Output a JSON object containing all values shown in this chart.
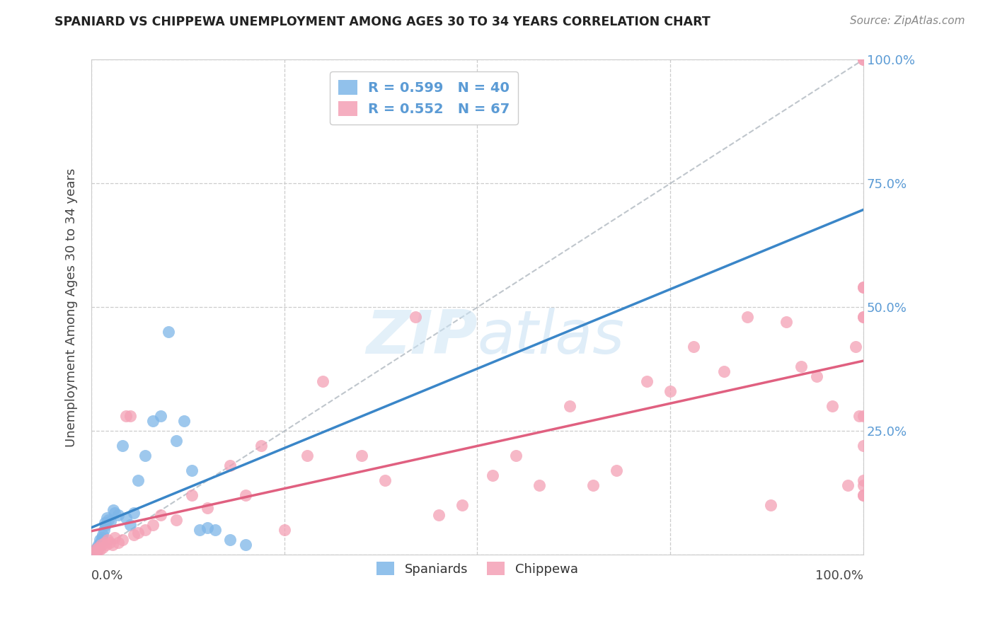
{
  "title": "SPANIARD VS CHIPPEWA UNEMPLOYMENT AMONG AGES 30 TO 34 YEARS CORRELATION CHART",
  "source": "Source: ZipAtlas.com",
  "ylabel": "Unemployment Among Ages 30 to 34 years",
  "spaniards_color": "#7eb6e8",
  "chippewa_color": "#f4a0b5",
  "trendline_spaniard_color": "#3a86c8",
  "trendline_chippewa_color": "#e06080",
  "diagonal_color": "#b0b8c0",
  "background_color": "#ffffff",
  "grid_color": "#cccccc",
  "watermark_zip": "ZIP",
  "watermark_atlas": "atlas",
  "legend1_label1": "R = 0.599   N = 40",
  "legend1_label2": "R = 0.552   N = 67",
  "legend2_label1": "Spaniards",
  "legend2_label2": "Chippewa",
  "right_tick_color": "#5b9bd5",
  "spaniards_x": [
    0.2,
    0.3,
    0.4,
    0.5,
    0.6,
    0.7,
    0.8,
    0.9,
    1.0,
    1.1,
    1.2,
    1.3,
    1.4,
    1.5,
    1.6,
    1.7,
    1.8,
    2.0,
    2.2,
    2.5,
    2.8,
    3.0,
    3.5,
    4.0,
    4.5,
    5.0,
    5.5,
    6.0,
    7.0,
    8.0,
    9.0,
    10.0,
    11.0,
    12.0,
    13.0,
    14.0,
    15.0,
    16.0,
    18.0,
    20.0
  ],
  "spaniards_y": [
    0.5,
    0.3,
    0.8,
    1.0,
    0.5,
    1.5,
    1.2,
    2.0,
    1.8,
    3.0,
    2.5,
    2.8,
    3.5,
    4.0,
    5.0,
    6.5,
    6.0,
    7.5,
    7.0,
    6.8,
    9.0,
    8.5,
    8.0,
    22.0,
    7.5,
    6.0,
    8.5,
    15.0,
    20.0,
    27.0,
    28.0,
    45.0,
    23.0,
    27.0,
    17.0,
    5.0,
    5.5,
    5.0,
    3.0,
    2.0
  ],
  "chippewa_x": [
    0.3,
    0.5,
    0.7,
    0.9,
    1.1,
    1.3,
    1.5,
    1.7,
    1.9,
    2.1,
    2.4,
    2.7,
    3.0,
    3.5,
    4.0,
    4.5,
    5.0,
    5.5,
    6.0,
    7.0,
    8.0,
    9.0,
    11.0,
    13.0,
    15.0,
    18.0,
    20.0,
    22.0,
    25.0,
    28.0,
    30.0,
    35.0,
    38.0,
    42.0,
    45.0,
    48.0,
    52.0,
    55.0,
    58.0,
    62.0,
    65.0,
    68.0,
    72.0,
    75.0,
    78.0,
    82.0,
    85.0,
    88.0,
    90.0,
    92.0,
    94.0,
    96.0,
    98.0,
    99.0,
    99.5,
    100.0,
    100.0,
    100.0,
    100.0,
    100.0,
    100.0,
    100.0,
    100.0,
    100.0,
    100.0,
    100.0,
    100.0
  ],
  "chippewa_y": [
    0.5,
    1.0,
    0.8,
    1.5,
    1.0,
    2.0,
    1.5,
    2.5,
    2.0,
    3.0,
    2.5,
    2.0,
    3.5,
    2.5,
    3.0,
    28.0,
    28.0,
    4.0,
    4.5,
    5.0,
    6.0,
    8.0,
    7.0,
    12.0,
    9.5,
    18.0,
    12.0,
    22.0,
    5.0,
    20.0,
    35.0,
    20.0,
    15.0,
    48.0,
    8.0,
    10.0,
    16.0,
    20.0,
    14.0,
    30.0,
    14.0,
    17.0,
    35.0,
    33.0,
    42.0,
    37.0,
    48.0,
    10.0,
    47.0,
    38.0,
    36.0,
    30.0,
    14.0,
    42.0,
    28.0,
    100.0,
    100.0,
    48.0,
    48.0,
    54.0,
    54.0,
    12.0,
    22.0,
    15.0,
    12.0,
    28.0,
    14.0
  ]
}
